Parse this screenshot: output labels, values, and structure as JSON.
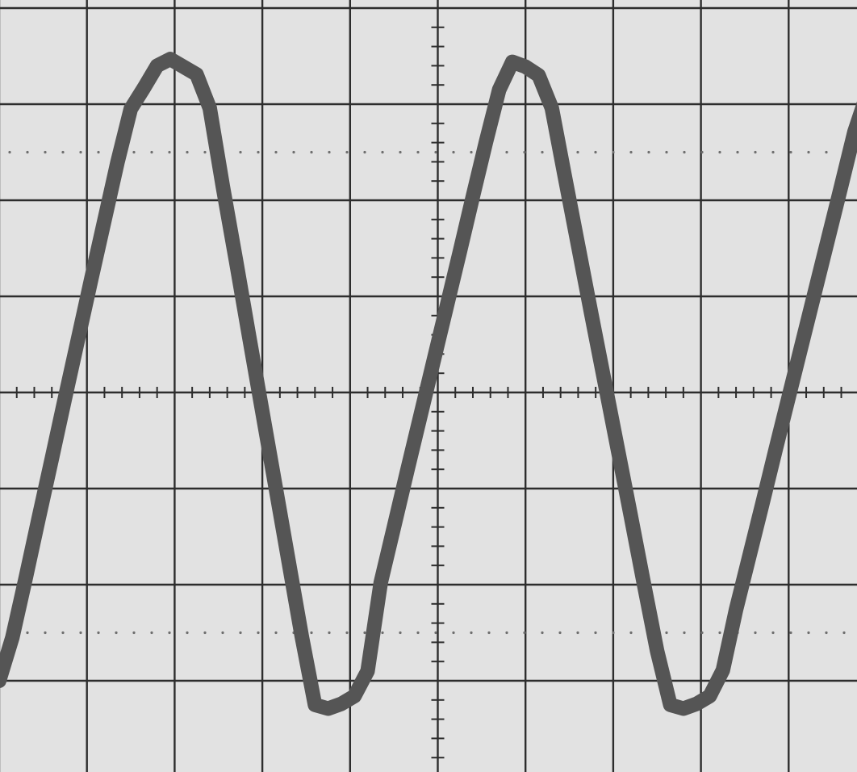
{
  "chart_data": {
    "type": "line",
    "title": "",
    "xlabel": "",
    "ylabel": "",
    "grid": true,
    "x_divisions": 10,
    "y_divisions": 8,
    "xlim": [
      -5,
      5
    ],
    "ylim": [
      -4,
      4
    ],
    "minor_ticks_per_division": 5,
    "series": [
      {
        "x": [
          -5.0,
          -4.85,
          -4.7,
          -4.55,
          -4.4,
          -4.25,
          -4.1,
          -3.95,
          -3.8,
          -3.65,
          -3.5,
          -3.35,
          -3.2,
          -3.05,
          -2.9,
          -2.75,
          -2.6,
          -2.45,
          -2.3,
          -2.15,
          -2.0,
          -1.85,
          -1.7,
          -1.55,
          -1.4,
          -1.25,
          -1.1,
          -0.95,
          -0.8,
          -0.65,
          -0.5,
          -0.35,
          -0.2,
          -0.05,
          0.1,
          0.25,
          0.4,
          0.55,
          0.7,
          0.85,
          1.0,
          1.15,
          1.3,
          1.45,
          1.6,
          1.75,
          1.9,
          2.05,
          2.2,
          2.35,
          2.5,
          2.65,
          2.8,
          2.95,
          3.1,
          3.25,
          3.4,
          3.55,
          3.7,
          3.85,
          4.0,
          4.15,
          4.3,
          4.45,
          4.6,
          4.75,
          4.9,
          5.0
        ],
        "y": [
          -3.0,
          -2.55,
          -1.94,
          -1.31,
          -0.69,
          -0.06,
          0.56,
          1.18,
          1.79,
          2.4,
          2.95,
          3.17,
          3.4,
          3.47,
          3.39,
          3.31,
          2.96,
          2.14,
          1.37,
          0.58,
          -0.2,
          -0.98,
          -1.76,
          -2.54,
          -3.25,
          -3.29,
          -3.24,
          -3.16,
          -2.9,
          -1.98,
          -1.4,
          -0.82,
          -0.25,
          0.32,
          0.89,
          1.46,
          2.04,
          2.61,
          3.15,
          3.44,
          3.39,
          3.3,
          2.96,
          2.24,
          1.53,
          0.82,
          0.12,
          -0.58,
          -1.28,
          -1.99,
          -2.69,
          -3.25,
          -3.29,
          -3.24,
          -3.16,
          -2.89,
          -2.26,
          -1.71,
          -1.16,
          -0.6,
          -0.05,
          0.5,
          1.05,
          1.6,
          2.15,
          2.71,
          3.12,
          3.22
        ]
      }
    ]
  }
}
